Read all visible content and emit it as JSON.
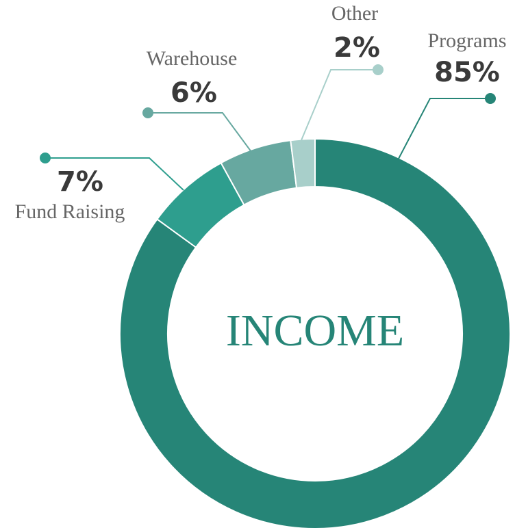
{
  "chart_data": {
    "type": "donut",
    "title": "INCOME",
    "categories": [
      "Programs",
      "Fund Raising",
      "Warehouse",
      "Other"
    ],
    "values": [
      85,
      7,
      6,
      2
    ],
    "value_labels": [
      "85%",
      "7%",
      "6%",
      "2%"
    ],
    "colors": [
      "#268577",
      "#2e9e8e",
      "#67a8a0",
      "#a8cfca"
    ]
  }
}
